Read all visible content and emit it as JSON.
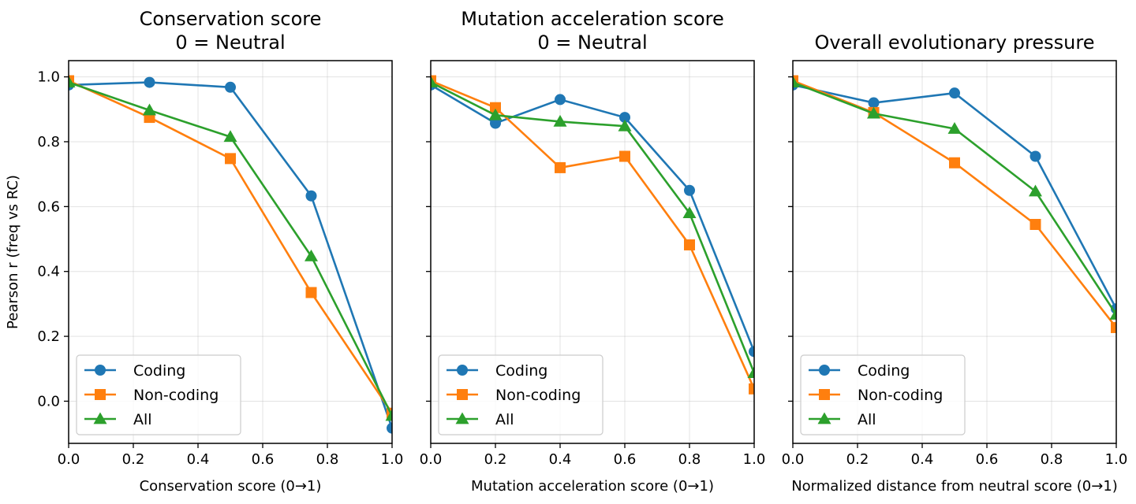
{
  "chart_data": [
    {
      "type": "line",
      "title": "Conservation score\n0 = Neutral",
      "xlabel": "Conservation score (0→1)",
      "ylabel": "Pearson r (freq vs RC)",
      "xlim": [
        0,
        1
      ],
      "ylim": [
        -0.13,
        1.05
      ],
      "xticks": [
        "0.0",
        "0.2",
        "0.4",
        "0.6",
        "0.8",
        "1.0"
      ],
      "yticks": [
        "0.0",
        "0.2",
        "0.4",
        "0.6",
        "0.8",
        "1.0"
      ],
      "grid": true,
      "legend_position": "lower-left",
      "series": [
        {
          "name": "Coding",
          "color": "#1f77b4",
          "marker": "circle",
          "x": [
            0,
            0.25,
            0.5,
            0.75,
            1.0
          ],
          "y": [
            0.975,
            0.983,
            0.968,
            0.633,
            -0.083
          ]
        },
        {
          "name": "Non-coding",
          "color": "#ff7f0e",
          "marker": "square",
          "x": [
            0,
            0.25,
            0.5,
            0.75,
            1.0
          ],
          "y": [
            0.988,
            0.875,
            0.748,
            0.335,
            -0.037
          ]
        },
        {
          "name": "All",
          "color": "#2ca02c",
          "marker": "triangle",
          "x": [
            0,
            0.25,
            0.5,
            0.75,
            1.0
          ],
          "y": [
            0.983,
            0.897,
            0.815,
            0.447,
            -0.045
          ]
        }
      ]
    },
    {
      "type": "line",
      "title": "Mutation acceleration score\n0 = Neutral",
      "xlabel": "Mutation acceleration score (0→1)",
      "ylabel": "",
      "xlim": [
        0,
        1
      ],
      "ylim": [
        -0.13,
        1.05
      ],
      "xticks": [
        "0.0",
        "0.2",
        "0.4",
        "0.6",
        "0.8",
        "1.0"
      ],
      "yticks": [],
      "grid": true,
      "legend_position": "lower-left",
      "series": [
        {
          "name": "Coding",
          "color": "#1f77b4",
          "marker": "circle",
          "x": [
            0,
            0.2,
            0.4,
            0.6,
            0.8,
            1.0
          ],
          "y": [
            0.975,
            0.857,
            0.93,
            0.875,
            0.65,
            0.153
          ]
        },
        {
          "name": "Non-coding",
          "color": "#ff7f0e",
          "marker": "square",
          "x": [
            0,
            0.2,
            0.4,
            0.6,
            0.8,
            1.0
          ],
          "y": [
            0.988,
            0.905,
            0.72,
            0.755,
            0.482,
            0.038
          ]
        },
        {
          "name": "All",
          "color": "#2ca02c",
          "marker": "triangle",
          "x": [
            0,
            0.2,
            0.4,
            0.6,
            0.8,
            1.0
          ],
          "y": [
            0.983,
            0.882,
            0.862,
            0.848,
            0.58,
            0.087
          ]
        }
      ]
    },
    {
      "type": "line",
      "title": "Overall evolutionary pressure",
      "xlabel": "Normalized distance from neutral score (0→1)",
      "ylabel": "",
      "xlim": [
        0,
        1
      ],
      "ylim": [
        -0.13,
        1.05
      ],
      "xticks": [
        "0.0",
        "0.2",
        "0.4",
        "0.6",
        "0.8",
        "1.0"
      ],
      "yticks": [],
      "grid": true,
      "legend_position": "lower-left",
      "series": [
        {
          "name": "Coding",
          "color": "#1f77b4",
          "marker": "circle",
          "x": [
            0,
            0.25,
            0.5,
            0.75,
            1.0
          ],
          "y": [
            0.975,
            0.92,
            0.95,
            0.755,
            0.285
          ]
        },
        {
          "name": "Non-coding",
          "color": "#ff7f0e",
          "marker": "square",
          "x": [
            0,
            0.25,
            0.5,
            0.75,
            1.0
          ],
          "y": [
            0.988,
            0.89,
            0.735,
            0.545,
            0.227
          ]
        },
        {
          "name": "All",
          "color": "#2ca02c",
          "marker": "triangle",
          "x": [
            0,
            0.25,
            0.5,
            0.75,
            1.0
          ],
          "y": [
            0.983,
            0.887,
            0.84,
            0.647,
            0.267
          ]
        }
      ]
    }
  ]
}
